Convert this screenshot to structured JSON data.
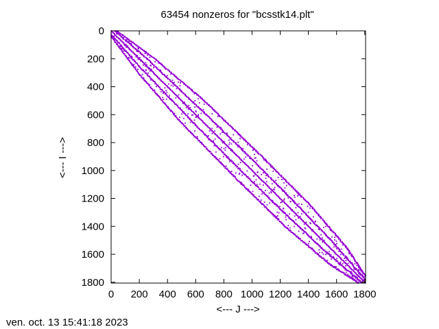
{
  "chart_data": {
    "type": "scatter",
    "title": "63454 nonzeros for \"bcsstk14.plt\"",
    "xlabel": "<--- J --->",
    "ylabel": "<--- I --->",
    "xlim": [
      0,
      1806
    ],
    "ylim": [
      0,
      1806
    ],
    "y_axis_inverted": true,
    "xticks": [
      0,
      200,
      400,
      600,
      800,
      1000,
      1200,
      1400,
      1600,
      1800
    ],
    "yticks": [
      0,
      200,
      400,
      600,
      800,
      1000,
      1200,
      1400,
      1600,
      1800
    ],
    "grid": false,
    "legend": "none",
    "point_color": "#9400d3",
    "symmetric": true,
    "bands": [
      {
        "name": "main-diagonal",
        "offset": [
          [
            0,
            0
          ],
          [
            1806,
            0
          ]
        ]
      },
      {
        "name": "inner-band",
        "offset": [
          [
            0,
            25
          ],
          [
            200,
            55
          ],
          [
            600,
            75
          ],
          [
            900,
            80
          ],
          [
            1200,
            75
          ],
          [
            1500,
            60
          ],
          [
            1806,
            20
          ]
        ]
      },
      {
        "name": "outer-band",
        "offset": [
          [
            0,
            40
          ],
          [
            200,
            110
          ],
          [
            500,
            160
          ],
          [
            900,
            170
          ],
          [
            1250,
            165
          ],
          [
            1550,
            120
          ],
          [
            1806,
            30
          ]
        ]
      }
    ]
  },
  "timestamp": "ven. oct. 13 15:41:18 2023"
}
